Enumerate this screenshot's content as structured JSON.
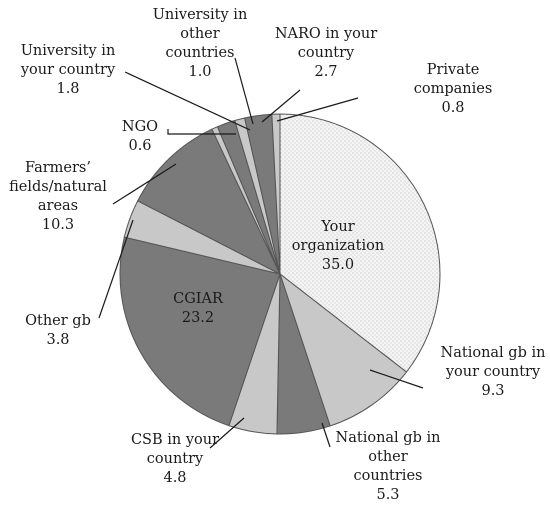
{
  "chart_data": {
    "type": "pie",
    "title": "",
    "unit": "%",
    "slices": [
      {
        "name": "Your organization",
        "lines": [
          "Your",
          "organization"
        ],
        "value": 35.0,
        "display": "35.0",
        "color": "#f2f2f2",
        "pattern": "dots"
      },
      {
        "name": "National gb in your country",
        "lines": [
          "National gb in",
          "your country"
        ],
        "value": 9.3,
        "display": "9.3",
        "color": "#c8c8c8"
      },
      {
        "name": "National gb in other countries",
        "lines": [
          "National gb in",
          "other",
          "countries"
        ],
        "value": 5.3,
        "display": "5.3",
        "color": "#7a7a7a"
      },
      {
        "name": "CSB in your country",
        "lines": [
          "CSB in your",
          "country"
        ],
        "value": 4.8,
        "display": "4.8",
        "color": "#c8c8c8"
      },
      {
        "name": "CGIAR",
        "lines": [
          "CGIAR"
        ],
        "value": 23.2,
        "display": "23.2",
        "color": "#7a7a7a"
      },
      {
        "name": "Other gb",
        "lines": [
          "Other gb"
        ],
        "value": 3.8,
        "display": "3.8",
        "color": "#c8c8c8"
      },
      {
        "name": "Farmers’ fields/natural areas",
        "lines": [
          "Farmers’",
          "fields/natural",
          "areas"
        ],
        "value": 10.3,
        "display": "10.3",
        "color": "#7a7a7a"
      },
      {
        "name": "NGO",
        "lines": [
          "NGO"
        ],
        "value": 0.6,
        "display": "0.6",
        "color": "#c8c8c8"
      },
      {
        "name": "University in your country",
        "lines": [
          "University in",
          "your country"
        ],
        "value": 1.8,
        "display": "1.8",
        "color": "#7a7a7a"
      },
      {
        "name": "University in other countries",
        "lines": [
          "University in",
          "other",
          "countries"
        ],
        "value": 1.0,
        "display": "1.0",
        "color": "#c8c8c8"
      },
      {
        "name": "NARO in your country",
        "lines": [
          "NARO in your",
          "country"
        ],
        "value": 2.7,
        "display": "2.7",
        "color": "#7a7a7a"
      },
      {
        "name": "Private companies",
        "lines": [
          "Private",
          "companies"
        ],
        "value": 0.8,
        "display": "0.8",
        "color": "#c8c8c8"
      }
    ]
  }
}
